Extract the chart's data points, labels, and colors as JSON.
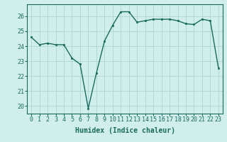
{
  "x": [
    0,
    1,
    2,
    3,
    4,
    5,
    6,
    7,
    8,
    9,
    10,
    11,
    12,
    13,
    14,
    15,
    16,
    17,
    18,
    19,
    20,
    21,
    22,
    23
  ],
  "y": [
    24.6,
    24.1,
    24.2,
    24.1,
    24.1,
    23.2,
    22.8,
    19.85,
    22.2,
    24.35,
    25.4,
    26.3,
    26.3,
    25.6,
    25.7,
    25.8,
    25.8,
    25.8,
    25.7,
    25.5,
    25.45,
    25.8,
    25.7,
    22.55
  ],
  "line_color": "#1a6b5e",
  "marker": "s",
  "marker_size": 2.0,
  "bg_color": "#d0eeec",
  "grid_color": "#b0d8d4",
  "xlabel": "Humidex (Indice chaleur)",
  "ylim": [
    19.5,
    26.8
  ],
  "xlim": [
    -0.5,
    23.5
  ],
  "yticks": [
    20,
    21,
    22,
    23,
    24,
    25,
    26
  ],
  "xtick_labels": [
    "0",
    "1",
    "2",
    "3",
    "4",
    "5",
    "6",
    "7",
    "8",
    "9",
    "10",
    "11",
    "12",
    "13",
    "14",
    "15",
    "16",
    "17",
    "18",
    "19",
    "20",
    "21",
    "22",
    "23"
  ],
  "tick_color": "#1a6b5e",
  "label_color": "#1a6b5e",
  "font_size": 6.0,
  "xlabel_fontsize": 7.0,
  "linewidth": 1.0
}
